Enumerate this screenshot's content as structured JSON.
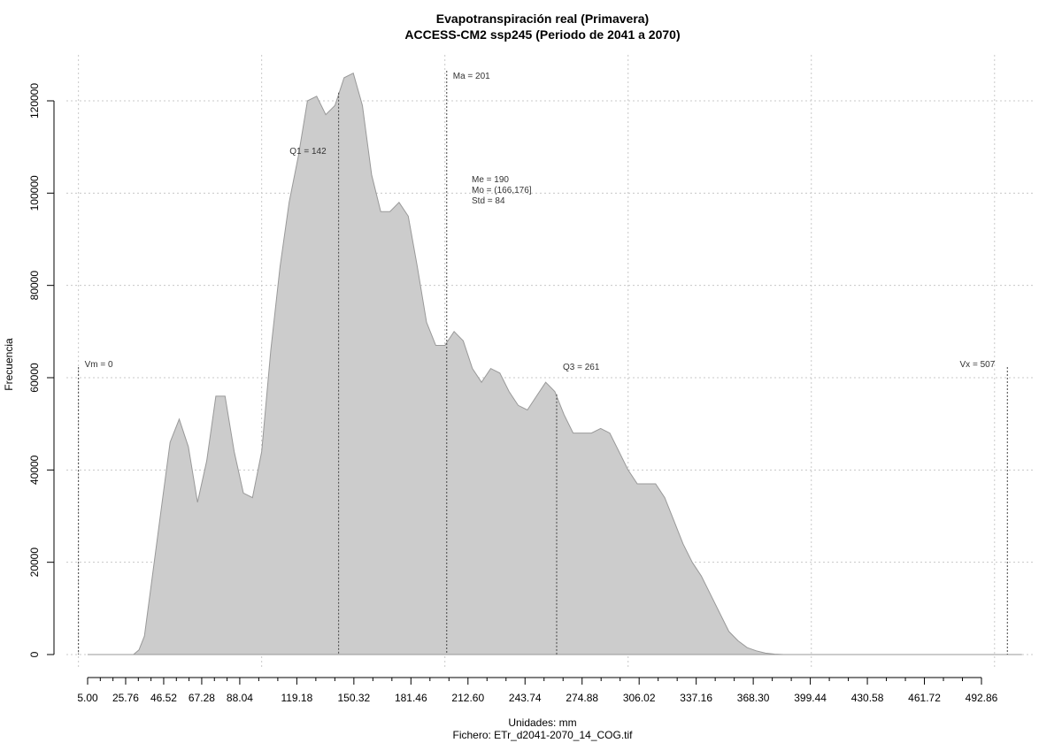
{
  "chart_data": {
    "type": "area",
    "title": "Evapotranspiración real (Primavera)",
    "subtitle": "ACCESS-CM2 ssp245 (Periodo de 2041 a 2070)",
    "xlabel": "Unidades: mm",
    "caption": "Fichero: ETr_d2041-2070_14_COG.tif",
    "ylabel": "Frecuencia",
    "xlim": [
      -2,
      520
    ],
    "ylim": [
      0,
      130000
    ],
    "x_ticks": [
      "5.00",
      "25.76",
      "46.52",
      "67.28",
      "88.04",
      "119.18",
      "150.32",
      "181.46",
      "212.60",
      "243.74",
      "274.88",
      "306.02",
      "337.16",
      "368.30",
      "399.44",
      "430.58",
      "461.72",
      "492.86"
    ],
    "x_tick_values": [
      5.0,
      25.76,
      46.52,
      67.28,
      88.04,
      119.18,
      150.32,
      181.46,
      212.6,
      243.74,
      274.88,
      306.02,
      337.16,
      368.3,
      399.44,
      430.58,
      461.72,
      492.86
    ],
    "y_ticks": [
      "0",
      "20000",
      "40000",
      "60000",
      "80000",
      "100000",
      "120000"
    ],
    "y_tick_values": [
      0,
      20000,
      40000,
      60000,
      80000,
      100000,
      120000
    ],
    "grid": true,
    "fill_color": "#cccccc",
    "line_color": "#999999",
    "series": [
      {
        "x": [
          5,
          15,
          25,
          30,
          33,
          36,
          40,
          45,
          50,
          55,
          60,
          65,
          70,
          75,
          80,
          85,
          90,
          95,
          100,
          105,
          110,
          115,
          120,
          125,
          130,
          135,
          140,
          145,
          150,
          155,
          160,
          165,
          170,
          175,
          180,
          185,
          190,
          195,
          200,
          205,
          210,
          215,
          220,
          225,
          230,
          235,
          240,
          245,
          250,
          255,
          260,
          265,
          270,
          275,
          280,
          285,
          290,
          295,
          300,
          305,
          310,
          315,
          320,
          325,
          330,
          335,
          340,
          345,
          350,
          355,
          360,
          365,
          370,
          375,
          380,
          385,
          390,
          395,
          400,
          405,
          410,
          415,
          420,
          425,
          430,
          440,
          460,
          480,
          500,
          515
        ],
        "y": [
          0,
          0,
          0,
          0,
          1000,
          4000,
          16000,
          31000,
          46000,
          51000,
          45000,
          33000,
          42000,
          56000,
          56000,
          44000,
          35000,
          34000,
          44000,
          66000,
          84000,
          98000,
          108000,
          120000,
          121000,
          117000,
          119000,
          125000,
          126000,
          119000,
          104000,
          96000,
          96000,
          98000,
          95000,
          84000,
          72000,
          67000,
          67000,
          70000,
          68000,
          62000,
          59000,
          62000,
          61000,
          57000,
          54000,
          53000,
          56000,
          59000,
          57000,
          52000,
          48000,
          48000,
          48000,
          49000,
          48000,
          44000,
          40000,
          37000,
          37000,
          37000,
          34000,
          29000,
          24000,
          20000,
          17000,
          13000,
          9000,
          5000,
          3000,
          1500,
          800,
          300,
          100,
          0,
          0,
          0,
          0,
          0,
          0,
          0,
          0,
          0,
          0,
          0,
          0,
          0,
          0,
          0
        ]
      }
    ],
    "reference_lines": [
      {
        "label": "Vm = 0",
        "x": 0,
        "text_side": "right"
      },
      {
        "label": "Q1 = 142",
        "x": 142,
        "text_side": "left"
      },
      {
        "label": "Ma = 201",
        "x": 201,
        "text_side": "right"
      },
      {
        "label": "Q3 = 261",
        "x": 261,
        "text_side": "right"
      },
      {
        "label": "Vx = 507",
        "x": 507,
        "text_side": "left"
      }
    ],
    "stats": [
      "Me = 190",
      "Mo = (166,176]",
      "Std = 84"
    ]
  }
}
